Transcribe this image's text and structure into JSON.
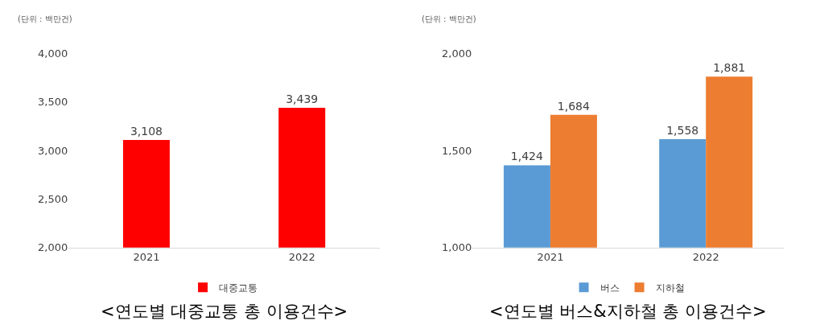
{
  "chart_data": [
    {
      "type": "bar",
      "title": "<연도별 대중교통 총 이용건수>",
      "annotations": [
        "(단위 : 백만건)"
      ],
      "categories": [
        "2021",
        "2022"
      ],
      "series": [
        {
          "name": "대중교통",
          "color": "#ff0000",
          "values": [
            3108,
            3439
          ],
          "value_labels": [
            "3,108",
            "3,439"
          ]
        }
      ],
      "ylim": [
        2000,
        4000
      ],
      "yticks": [
        {
          "value": 2000,
          "label": "2,000"
        },
        {
          "value": 2500,
          "label": "2,500"
        },
        {
          "value": 3000,
          "label": "3,000"
        },
        {
          "value": 3500,
          "label": "3,500"
        },
        {
          "value": 4000,
          "label": "4,000"
        }
      ],
      "legend": "bottom"
    },
    {
      "type": "bar",
      "title": "<연도별 버스&지하철 총 이용건수>",
      "annotations": [
        "(단위 : 백만건)"
      ],
      "categories": [
        "2021",
        "2022"
      ],
      "series": [
        {
          "name": "버스",
          "color": "#5b9bd5",
          "values": [
            1424,
            1558
          ],
          "value_labels": [
            "1,424",
            "1,558"
          ]
        },
        {
          "name": "지하철",
          "color": "#ed7d31",
          "values": [
            1684,
            1881
          ],
          "value_labels": [
            "1,684",
            "1,881"
          ]
        }
      ],
      "ylim": [
        1000,
        2000
      ],
      "yticks": [
        {
          "value": 1000,
          "label": "1,000"
        },
        {
          "value": 1500,
          "label": "1,500"
        },
        {
          "value": 2000,
          "label": "2,000"
        }
      ],
      "legend": "bottom"
    }
  ]
}
